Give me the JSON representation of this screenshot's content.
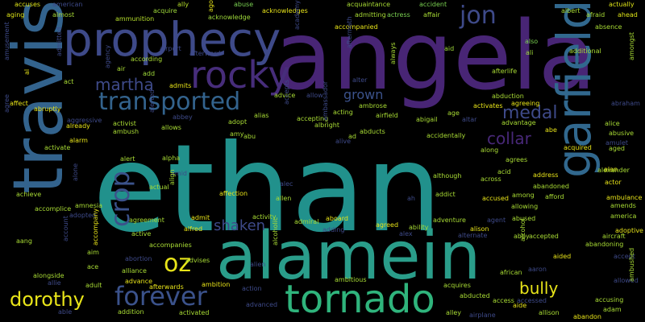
{
  "colors": {
    "background": "#000000",
    "yellow": "#e8e419",
    "green": "#3bbb75",
    "teal": "#21918c",
    "blue": "#33638d",
    "purple": "#482575",
    "indigo": "#3e4a89"
  },
  "words": [
    {
      "text": "ethan",
      "color": "#21918c"
    },
    {
      "text": "angela",
      "color": "#482575"
    },
    {
      "text": "travis",
      "color": "#33638d"
    },
    {
      "text": "alamein",
      "color": "#2a9d8a"
    },
    {
      "text": "prophecy",
      "color": "#3e4a89"
    },
    {
      "text": "garfield",
      "color": "#31688e"
    },
    {
      "text": "tornado",
      "color": "#2fb47c"
    },
    {
      "text": "rocky",
      "color": "#472d7b"
    },
    {
      "text": "transported",
      "color": "#33638d"
    },
    {
      "text": "jon",
      "color": "#3e4a89"
    },
    {
      "text": "forever",
      "color": "#3b528b"
    },
    {
      "text": "oz",
      "color": "#e8e419"
    },
    {
      "text": "dorothy",
      "color": "#e8e419"
    },
    {
      "text": "crop",
      "color": "#3b528b"
    },
    {
      "text": "martha",
      "color": "#3e4a89"
    },
    {
      "text": "medal",
      "color": "#3e4a89"
    },
    {
      "text": "collar",
      "color": "#482878"
    },
    {
      "text": "shaken",
      "color": "#3e4a89"
    },
    {
      "text": "bully",
      "color": "#e8e419"
    },
    {
      "text": "grown",
      "color": "#3b528b"
    },
    {
      "text": "accuses",
      "color": "#dde318"
    },
    {
      "text": "american",
      "color": "#3e4a89"
    },
    {
      "text": "acquire",
      "color": "#9fda3a"
    },
    {
      "text": "ally",
      "color": "#b5de2b"
    },
    {
      "text": "abuse",
      "color": "#7ad151"
    },
    {
      "text": "acknowledges",
      "color": "#e8e419"
    },
    {
      "text": "acquaintance",
      "color": "#a8db34"
    },
    {
      "text": "accident",
      "color": "#7ad151"
    },
    {
      "text": "actually",
      "color": "#dde318"
    },
    {
      "text": "aging",
      "color": "#dde318"
    },
    {
      "text": "almost",
      "color": "#a8db34"
    },
    {
      "text": "ammunition",
      "color": "#b5de2b"
    },
    {
      "text": "acknowledge",
      "color": "#9fda3a"
    },
    {
      "text": "admitting",
      "color": "#a8db34"
    },
    {
      "text": "actress",
      "color": "#7ad151"
    },
    {
      "text": "affair",
      "color": "#a8db34"
    },
    {
      "text": "albert",
      "color": "#a8db34"
    },
    {
      "text": "afraid",
      "color": "#a8db34"
    },
    {
      "text": "ahead",
      "color": "#dde318"
    },
    {
      "text": "absence",
      "color": "#a8db34"
    },
    {
      "text": "accompanied",
      "color": "#e8e419"
    },
    {
      "text": "aid",
      "color": "#9fda3a"
    },
    {
      "text": "also",
      "color": "#7ad151"
    },
    {
      "text": "ali",
      "color": "#9fda3a"
    },
    {
      "text": "additional",
      "color": "#a8db34"
    },
    {
      "text": "according",
      "color": "#a8db34"
    },
    {
      "text": "airport",
      "color": "#3e4a89"
    },
    {
      "text": "afterward",
      "color": "#3e4a89"
    },
    {
      "text": "air",
      "color": "#a8db34"
    },
    {
      "text": "add",
      "color": "#9fda3a"
    },
    {
      "text": "admits",
      "color": "#e8e419"
    },
    {
      "text": "alter",
      "color": "#3e4a89"
    },
    {
      "text": "afterlife",
      "color": "#a8db34"
    },
    {
      "text": "abduction",
      "color": "#a8db34"
    },
    {
      "text": "act",
      "color": "#a8db34"
    },
    {
      "text": "advice",
      "color": "#a8db34"
    },
    {
      "text": "allow",
      "color": "#3e4a89"
    },
    {
      "text": "ambrose",
      "color": "#a8db34"
    },
    {
      "text": "activates",
      "color": "#e8e419"
    },
    {
      "text": "agreeing",
      "color": "#e8e419"
    },
    {
      "text": "abraham",
      "color": "#3e4a89"
    },
    {
      "text": "affect",
      "color": "#e8e419"
    },
    {
      "text": "abruptly",
      "color": "#e8e419"
    },
    {
      "text": "aggressive",
      "color": "#3e4a89"
    },
    {
      "text": "already",
      "color": "#e8e419"
    },
    {
      "text": "activist",
      "color": "#a8db34"
    },
    {
      "text": "ambush",
      "color": "#a8db34"
    },
    {
      "text": "abbey",
      "color": "#3e4a89"
    },
    {
      "text": "allows",
      "color": "#a8db34"
    },
    {
      "text": "adopt",
      "color": "#a8db34"
    },
    {
      "text": "albright",
      "color": "#a8db34"
    },
    {
      "text": "accepting",
      "color": "#a8db34"
    },
    {
      "text": "acting",
      "color": "#a8db34"
    },
    {
      "text": "airfield",
      "color": "#a8db34"
    },
    {
      "text": "abigail",
      "color": "#a8db34"
    },
    {
      "text": "age",
      "color": "#a8db34"
    },
    {
      "text": "altar",
      "color": "#3e4a89"
    },
    {
      "text": "advantage",
      "color": "#a8db34"
    },
    {
      "text": "alice",
      "color": "#a8db34"
    },
    {
      "text": "abusive",
      "color": "#a8db34"
    },
    {
      "text": "amulet",
      "color": "#3e4a89"
    },
    {
      "text": "abe",
      "color": "#e8e419"
    },
    {
      "text": "acquired",
      "color": "#e8e419"
    },
    {
      "text": "aged",
      "color": "#a8db34"
    },
    {
      "text": "alan",
      "color": "#e8e419"
    },
    {
      "text": "abu",
      "color": "#a8db34"
    },
    {
      "text": "amy",
      "color": "#a8db34"
    },
    {
      "text": "alive",
      "color": "#3e4a89"
    },
    {
      "text": "abducts",
      "color": "#a8db34"
    },
    {
      "text": "accidentally",
      "color": "#a8db34"
    },
    {
      "text": "along",
      "color": "#a8db34"
    },
    {
      "text": "agrees",
      "color": "#a8db34"
    },
    {
      "text": "alarm",
      "color": "#e8e419"
    },
    {
      "text": "activate",
      "color": "#a8db34"
    },
    {
      "text": "alert",
      "color": "#a8db34"
    },
    {
      "text": "alpha",
      "color": "#a8db34"
    },
    {
      "text": "alias",
      "color": "#a8db34"
    },
    {
      "text": "ad",
      "color": "#a8db34"
    },
    {
      "text": "alexander",
      "color": "#a8db34"
    },
    {
      "text": "address",
      "color": "#e8e419"
    },
    {
      "text": "acid",
      "color": "#a8db34"
    },
    {
      "text": "across",
      "color": "#a8db34"
    },
    {
      "text": "actor",
      "color": "#e8e419"
    },
    {
      "text": "achieve",
      "color": "#a8db34"
    },
    {
      "text": "amid",
      "color": "#3e4a89"
    },
    {
      "text": "actual",
      "color": "#a8db34"
    },
    {
      "text": "affection",
      "color": "#e8e419"
    },
    {
      "text": "alec",
      "color": "#3e4a89"
    },
    {
      "text": "allen",
      "color": "#a8db34"
    },
    {
      "text": "although",
      "color": "#a8db34"
    },
    {
      "text": "abandoned",
      "color": "#a8db34"
    },
    {
      "text": "afford",
      "color": "#a8db34"
    },
    {
      "text": "ambulance",
      "color": "#e8e419"
    },
    {
      "text": "amnesia",
      "color": "#a8db34"
    },
    {
      "text": "accomplice",
      "color": "#a8db34"
    },
    {
      "text": "ah",
      "color": "#3e4a89"
    },
    {
      "text": "addict",
      "color": "#a8db34"
    },
    {
      "text": "accused",
      "color": "#e8e419"
    },
    {
      "text": "among",
      "color": "#a8db34"
    },
    {
      "text": "allowing",
      "color": "#a8db34"
    },
    {
      "text": "amends",
      "color": "#a8db34"
    },
    {
      "text": "adopted",
      "color": "#3e4a89"
    },
    {
      "text": "agreement",
      "color": "#a8db34"
    },
    {
      "text": "admit",
      "color": "#e8e419"
    },
    {
      "text": "activity",
      "color": "#a8db34"
    },
    {
      "text": "admiral",
      "color": "#a8db34"
    },
    {
      "text": "aboard",
      "color": "#e8e419"
    },
    {
      "text": "adventure",
      "color": "#a8db34"
    },
    {
      "text": "agent",
      "color": "#3e4a89"
    },
    {
      "text": "america",
      "color": "#a8db34"
    },
    {
      "text": "agreed",
      "color": "#e8e419"
    },
    {
      "text": "ability",
      "color": "#a8db34"
    },
    {
      "text": "alison",
      "color": "#e8e419"
    },
    {
      "text": "abused",
      "color": "#a8db34"
    },
    {
      "text": "adoptive",
      "color": "#e8e419"
    },
    {
      "text": "alfred",
      "color": "#e8e419"
    },
    {
      "text": "alex",
      "color": "#3e4a89"
    },
    {
      "text": "adding",
      "color": "#3e4a89"
    },
    {
      "text": "alternate",
      "color": "#3e4a89"
    },
    {
      "text": "abby",
      "color": "#a8db34"
    },
    {
      "text": "accepted",
      "color": "#a8db34"
    },
    {
      "text": "aircraft",
      "color": "#a8db34"
    },
    {
      "text": "aang",
      "color": "#a8db34"
    },
    {
      "text": "active",
      "color": "#a8db34"
    },
    {
      "text": "accompanies",
      "color": "#a8db34"
    },
    {
      "text": "abandoning",
      "color": "#a8db34"
    },
    {
      "text": "aim",
      "color": "#a8db34"
    },
    {
      "text": "abortion",
      "color": "#3e4a89"
    },
    {
      "text": "advises",
      "color": "#a8db34"
    },
    {
      "text": "aided",
      "color": "#e8e419"
    },
    {
      "text": "accept",
      "color": "#3e4a89"
    },
    {
      "text": "ace",
      "color": "#a8db34"
    },
    {
      "text": "alliance",
      "color": "#a8db34"
    },
    {
      "text": "alien",
      "color": "#3e4a89"
    },
    {
      "text": "alongside",
      "color": "#a8db34"
    },
    {
      "text": "allie",
      "color": "#3e4a89"
    },
    {
      "text": "advance",
      "color": "#e8e419"
    },
    {
      "text": "ambition",
      "color": "#e8e419"
    },
    {
      "text": "african",
      "color": "#a8db34"
    },
    {
      "text": "aaron",
      "color": "#3e4a89"
    },
    {
      "text": "allowed",
      "color": "#3e4a89"
    },
    {
      "text": "adult",
      "color": "#a8db34"
    },
    {
      "text": "afterwards",
      "color": "#e8e419"
    },
    {
      "text": "action",
      "color": "#3e4a89"
    },
    {
      "text": "ambitious",
      "color": "#a8db34"
    },
    {
      "text": "acquires",
      "color": "#a8db34"
    },
    {
      "text": "abducted",
      "color": "#a8db34"
    },
    {
      "text": "accessed",
      "color": "#3e4a89"
    },
    {
      "text": "advanced",
      "color": "#3e4a89"
    },
    {
      "text": "access",
      "color": "#a8db34"
    },
    {
      "text": "accusing",
      "color": "#a8db34"
    },
    {
      "text": "able",
      "color": "#3e4a89"
    },
    {
      "text": "addition",
      "color": "#a8db34"
    },
    {
      "text": "activated",
      "color": "#a8db34"
    },
    {
      "text": "alley",
      "color": "#a8db34"
    },
    {
      "text": "airplane",
      "color": "#3e4a89"
    },
    {
      "text": "aide",
      "color": "#e8e419"
    },
    {
      "text": "allison",
      "color": "#a8db34"
    },
    {
      "text": "adam",
      "color": "#a8db34"
    },
    {
      "text": "abandon",
      "color": "#e8e419"
    },
    {
      "text": "amusement",
      "color": "#3e4a89"
    },
    {
      "text": "al",
      "color": "#e8e419"
    },
    {
      "text": "admitted",
      "color": "#3e4a89"
    },
    {
      "text": "agree",
      "color": "#3e4a89"
    },
    {
      "text": "alone",
      "color": "#3e4a89"
    },
    {
      "text": "account",
      "color": "#3e4a89"
    },
    {
      "text": "accompany",
      "color": "#e8e419"
    },
    {
      "text": "agency",
      "color": "#3e4a89"
    },
    {
      "text": "ago",
      "color": "#e8e419"
    },
    {
      "text": "academy",
      "color": "#3e4a89"
    },
    {
      "text": "alerted",
      "color": "#3e4a89"
    },
    {
      "text": "ambassador",
      "color": "#3e4a89"
    },
    {
      "text": "accepts",
      "color": "#3e4a89"
    },
    {
      "text": "aftermath",
      "color": "#3e4a89"
    },
    {
      "text": "always",
      "color": "#a8db34"
    },
    {
      "text": "align",
      "color": "#a8db34"
    },
    {
      "text": "alcohol",
      "color": "#a8db34"
    },
    {
      "text": "alcoholic",
      "color": "#a8db34"
    },
    {
      "text": "amongst",
      "color": "#a8db34"
    },
    {
      "text": "ambushed",
      "color": "#a8db34"
    }
  ]
}
